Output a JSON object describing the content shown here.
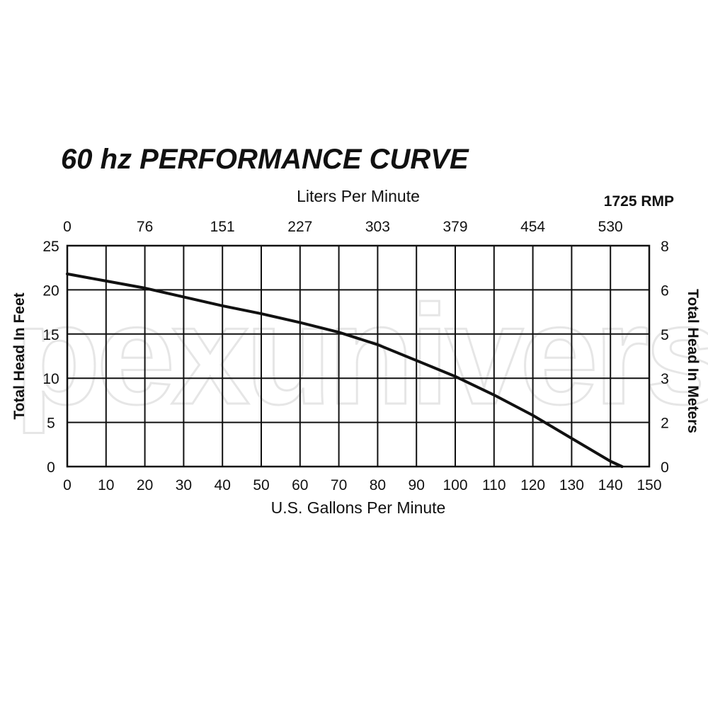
{
  "watermark": "pexuniverse",
  "chart_data": {
    "type": "line",
    "title": "60 hz PERFORMANCE CURVE",
    "subtitle": "1725 RMP",
    "xlabel": "U.S. Gallons Per Minute",
    "x2label": "Liters Per Minute",
    "ylabel": "Total Head In Feet",
    "y2label": "Total Head In Meters",
    "xlim": [
      0,
      150
    ],
    "ylim": [
      0,
      25
    ],
    "grid": true,
    "x_ticks": [
      "0",
      "10",
      "20",
      "30",
      "40",
      "50",
      "60",
      "70",
      "80",
      "90",
      "100",
      "110",
      "120",
      "130",
      "140",
      "150"
    ],
    "x2_ticks": [
      "0",
      "76",
      "151",
      "227",
      "303",
      "379",
      "454",
      "530"
    ],
    "y_ticks": [
      "25",
      "20",
      "15",
      "10",
      "5",
      "0"
    ],
    "y2_ticks": [
      "8",
      "6",
      "5",
      "3",
      "2",
      "0"
    ],
    "series": [
      {
        "x": [
          0,
          10,
          20,
          30,
          40,
          50,
          60,
          70,
          80,
          90,
          100,
          110,
          120,
          130,
          140,
          143
        ],
        "y": [
          21.8,
          21.0,
          20.2,
          19.2,
          18.2,
          17.3,
          16.3,
          15.2,
          13.8,
          12.0,
          10.2,
          8.1,
          5.8,
          3.2,
          0.6,
          0
        ]
      }
    ]
  }
}
